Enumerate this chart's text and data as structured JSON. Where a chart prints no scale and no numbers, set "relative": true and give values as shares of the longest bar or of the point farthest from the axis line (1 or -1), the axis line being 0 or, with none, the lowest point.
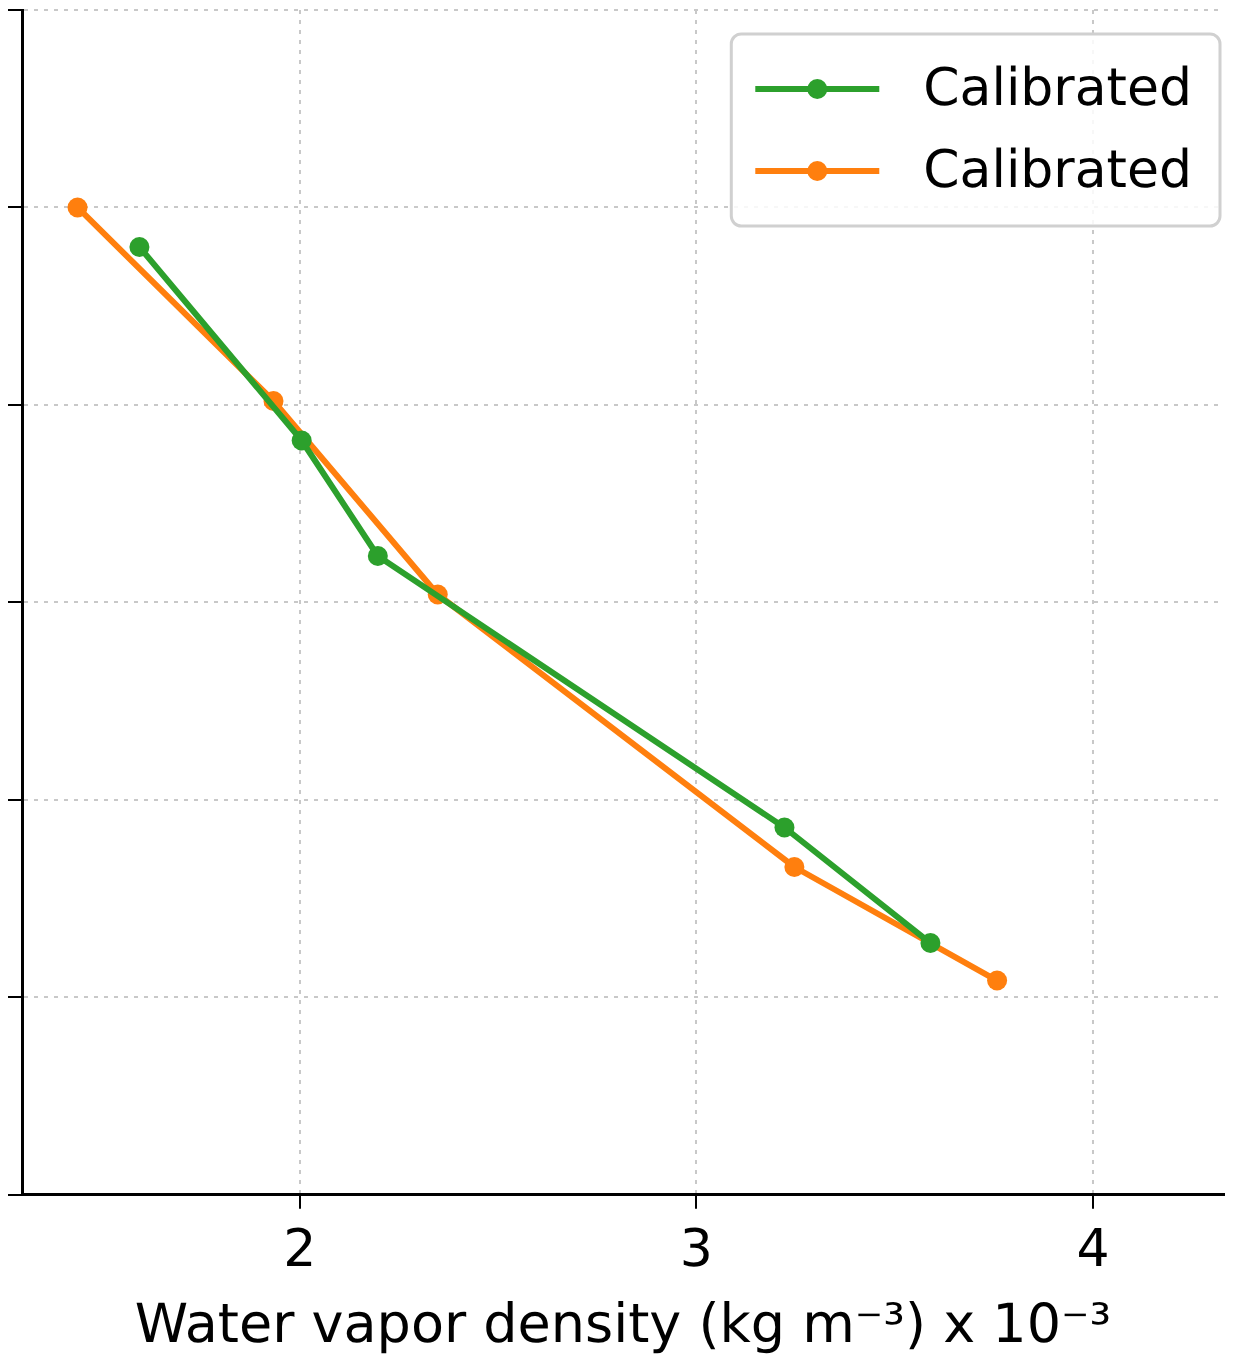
{
  "chart_data": {
    "type": "line",
    "relative": true,
    "xlabel": "Water vapor density (kg m⁻³) x 10⁻³",
    "xlim": [
      1.3,
      4.33
    ],
    "xticks": [
      2,
      3,
      4
    ],
    "grid": true,
    "legend": "top right",
    "marker": "circle",
    "line_style": "solid",
    "series": [
      {
        "name": "Calibrated",
        "color": "#2ca02c",
        "x": [
          1.596,
          2.005,
          2.197,
          3.222,
          3.59
        ],
        "values": [
          0.96,
          0.764,
          0.647,
          0.372,
          0.255
        ]
      },
      {
        "name": "Calibrated",
        "color": "#ff7f0e",
        "x": [
          1.44,
          1.934,
          2.348,
          3.247,
          3.758
        ],
        "values": [
          1,
          0.804,
          0.608,
          0.332,
          0.217
        ]
      }
    ]
  }
}
